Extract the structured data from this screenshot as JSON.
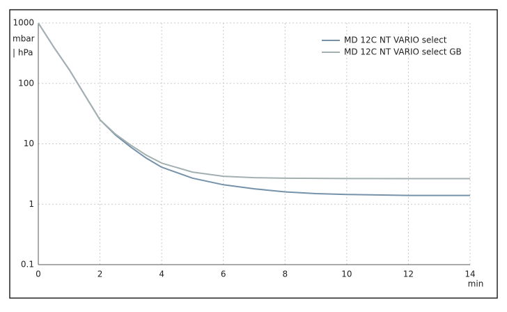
{
  "chart_data": {
    "type": "line",
    "ylabel": [
      "mbar",
      "| hPa"
    ],
    "xlabel": "min",
    "x": [
      0,
      0.5,
      1,
      1.5,
      2,
      2.5,
      3,
      3.5,
      4,
      5,
      6,
      7,
      8,
      9,
      10,
      12,
      14
    ],
    "series": [
      {
        "name": "MD 12C NT VARIO select",
        "color": "#7592aa",
        "values": [
          1000,
          400,
          170,
          65,
          25,
          14,
          8.8,
          5.8,
          4.1,
          2.7,
          2.1,
          1.8,
          1.6,
          1.5,
          1.45,
          1.4,
          1.4
        ]
      },
      {
        "name": "MD 12C NT VARIO select GB",
        "color": "#a3afb0",
        "values": [
          1000,
          400,
          170,
          65,
          25,
          14.5,
          9.5,
          6.5,
          4.8,
          3.4,
          2.9,
          2.75,
          2.7,
          2.68,
          2.66,
          2.65,
          2.65
        ]
      }
    ],
    "xlim": [
      0,
      14
    ],
    "xticks": [
      0,
      2,
      4,
      6,
      8,
      10,
      12,
      14
    ],
    "ylim": [
      0.1,
      1000
    ],
    "yticks": [
      0.1,
      1,
      10,
      100,
      1000
    ],
    "yscale": "log",
    "grid": true,
    "legend": "top-right"
  }
}
